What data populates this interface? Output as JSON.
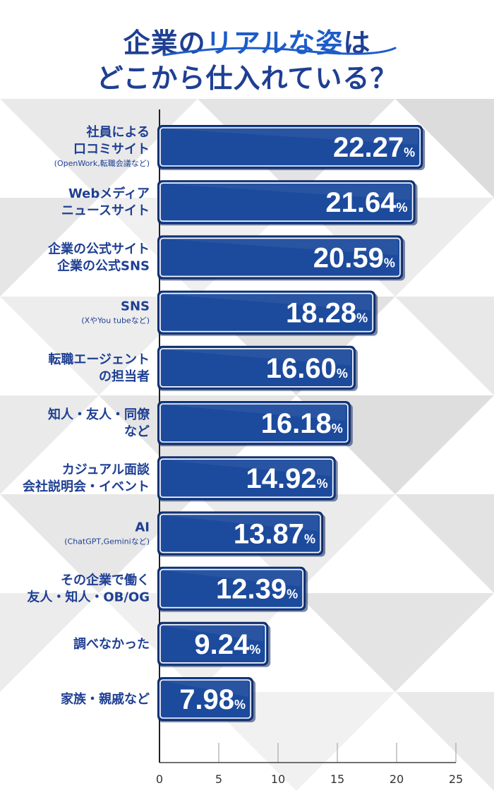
{
  "title": {
    "line1_prefix": "企業の",
    "line1_highlight": "リアルな姿",
    "line1_suffix": "は",
    "line2": "どこから仕入れている？"
  },
  "colors": {
    "title": "#1f3f93",
    "highlight": "#1d5cc9",
    "bar_fill": "#1c4a9c",
    "bar_border": "#0e2a66",
    "label": "#1f3f93",
    "axis": "#333333"
  },
  "chart_data": {
    "type": "bar",
    "orientation": "horizontal",
    "xlim": [
      0,
      25
    ],
    "x_ticks": [
      "0",
      "5",
      "10",
      "15",
      "20",
      "25"
    ],
    "value_suffix": "%",
    "categories": [
      {
        "lines": [
          "社員による",
          "口コミサイト"
        ],
        "note": "(OpenWork,転職会議など)"
      },
      {
        "lines": [
          "Webメディア",
          "ニュースサイト"
        ],
        "note": ""
      },
      {
        "lines": [
          "企業の公式サイト",
          "企業の公式SNS"
        ],
        "note": ""
      },
      {
        "lines": [
          "SNS"
        ],
        "note": "(XやYou tubeなど)"
      },
      {
        "lines": [
          "転職エージェント",
          "の担当者"
        ],
        "note": ""
      },
      {
        "lines": [
          "知人・友人・同僚",
          "など"
        ],
        "note": ""
      },
      {
        "lines": [
          "カジュアル面談",
          "会社説明会・イベント"
        ],
        "note": ""
      },
      {
        "lines": [
          "AI"
        ],
        "note": "(ChatGPT,Geminiなど)"
      },
      {
        "lines": [
          "その企業で働く",
          "友人・知人・OB/OG"
        ],
        "note": ""
      },
      {
        "lines": [
          "調べなかった"
        ],
        "note": ""
      },
      {
        "lines": [
          "家族・親戚など"
        ],
        "note": ""
      }
    ],
    "values": [
      22.27,
      21.64,
      20.59,
      18.28,
      16.6,
      16.18,
      14.92,
      13.87,
      12.39,
      9.24,
      7.98
    ],
    "value_labels": [
      "22.27",
      "21.64",
      "20.59",
      "18.28",
      "16.60",
      "16.18",
      "14.92",
      "13.87",
      "12.39",
      "9.24",
      "7.98"
    ]
  }
}
